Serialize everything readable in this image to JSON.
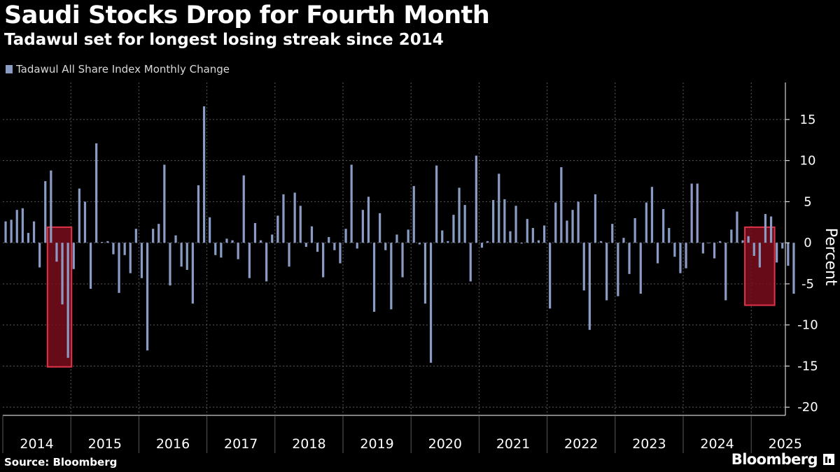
{
  "title": "Saudi Stocks Drop for Fourth Month",
  "subtitle": "Tadawul set for longest losing streak since 2014",
  "source": "Source: Bloomberg",
  "brand": "Bloomberg",
  "colors": {
    "bar": "#8a9cc4",
    "highlight_fill": "#7a0d1c",
    "highlight_stroke": "#e0334a",
    "axis": "#ffffff",
    "grid": "#5a5a5a",
    "text": "#ffffff"
  },
  "chart_data": {
    "type": "bar",
    "title": "Saudi Stocks Drop for Fourth Month",
    "subtitle": "Tadawul set for longest losing streak since 2014",
    "series": [
      {
        "name": "Tadawul All Share Index Monthly Change",
        "start": "2014-01",
        "values": [
          2.6,
          2.8,
          4.0,
          4.2,
          1.2,
          2.6,
          -3.0,
          7.5,
          8.8,
          -2.3,
          -7.5,
          -14.0,
          -3.2,
          6.6,
          5.0,
          -5.6,
          12.1,
          0.1,
          0.2,
          -1.4,
          -6.1,
          -1.5,
          -3.7,
          1.7,
          -4.3,
          -13.1,
          1.7,
          2.3,
          9.5,
          -5.2,
          0.9,
          -2.9,
          -3.3,
          -7.4,
          7.0,
          16.6,
          3.1,
          -1.5,
          -1.8,
          0.5,
          0.3,
          -2.0,
          8.2,
          -4.3,
          2.4,
          0.3,
          -4.7,
          1.0,
          3.3,
          5.9,
          -2.9,
          6.1,
          4.5,
          -0.5,
          2.0,
          -1.1,
          -4.2,
          0.7,
          -0.9,
          -2.5,
          1.7,
          9.5,
          -0.7,
          4.0,
          5.6,
          -8.4,
          3.6,
          -0.9,
          -8.1,
          1.0,
          -4.2,
          1.6,
          6.9,
          -0.2,
          -7.4,
          -14.6,
          9.4,
          1.5,
          0.2,
          3.4,
          6.7,
          4.6,
          -4.7,
          10.6,
          -0.6,
          0.2,
          5.2,
          8.4,
          5.3,
          1.4,
          4.5,
          -0.1,
          2.9,
          1.8,
          0.3,
          2.1,
          -8.0,
          4.9,
          9.2,
          2.7,
          4.0,
          5.0,
          -5.8,
          -10.6,
          5.9,
          0.2,
          -7.0,
          2.3,
          -6.5,
          0.6,
          -3.8,
          3.0,
          -6.2,
          4.9,
          6.8,
          -2.5,
          4.1,
          1.8,
          -1.7,
          -3.7,
          -3.1,
          7.2,
          7.2,
          -1.3,
          0.0,
          -1.9,
          0.2,
          -7.0,
          1.6,
          3.8,
          0.3,
          0.8,
          -1.6,
          -3.0,
          3.5,
          3.2,
          -2.4,
          -0.7,
          -2.8,
          -6.2
        ]
      }
    ],
    "x_categories": [
      "2014",
      "2015",
      "2016",
      "2017",
      "2018",
      "2019",
      "2020",
      "2021",
      "2022",
      "2023",
      "2024",
      "2025"
    ],
    "ylabel": "Percent",
    "ylim": [
      -21,
      19.5
    ],
    "yticks": [
      15,
      10,
      5,
      0,
      -5,
      -10,
      -15,
      -20
    ],
    "ytick_labels": [
      "15",
      "10",
      "5",
      "0",
      "-5",
      "-10",
      "-15",
      "-20"
    ],
    "grid": true,
    "legend": [
      "Tadawul All Share Index Monthly Change"
    ],
    "legend_position": "top-left",
    "highlights": [
      {
        "name": "2014 losing streak",
        "start": "2014-09",
        "end": "2014-12",
        "y_range": [
          -15.1,
          1.9
        ]
      },
      {
        "name": "2025 losing streak",
        "start": "2024-12",
        "end": "2025-04",
        "y_range": [
          -7.6,
          1.9
        ]
      }
    ]
  }
}
